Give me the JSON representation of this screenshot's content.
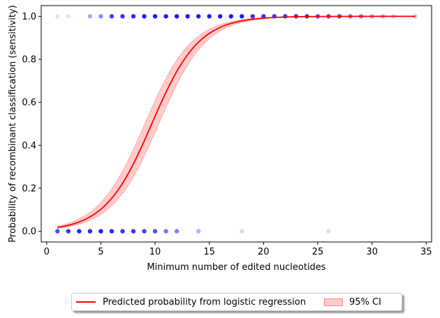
{
  "chart_data": {
    "type": "scatter",
    "xlabel": "Minimum number of edited nucleotides",
    "ylabel": "Probability of recombinant classification (sensitivity)",
    "xlim": [
      -0.5,
      35.5
    ],
    "ylim": [
      -0.05,
      1.05
    ],
    "x_ticks": [
      0,
      5,
      10,
      15,
      20,
      25,
      30,
      35
    ],
    "y_ticks": [
      0.0,
      0.2,
      0.4,
      0.6,
      0.8,
      1.0
    ],
    "grid": false,
    "legend_position": "bottom-outside",
    "colors": {
      "points": "#0000ff",
      "curve": "#ff0000",
      "ci_fill": "#ff0000"
    },
    "points_y1": [
      {
        "x": 1,
        "a": 0.12
      },
      {
        "x": 2,
        "a": 0.12
      },
      {
        "x": 4,
        "a": 0.35
      },
      {
        "x": 5,
        "a": 0.45
      },
      {
        "x": 6,
        "a": 0.75
      },
      {
        "x": 7,
        "a": 0.8
      },
      {
        "x": 8,
        "a": 0.85
      },
      {
        "x": 9,
        "a": 0.9
      },
      {
        "x": 10,
        "a": 0.9
      },
      {
        "x": 11,
        "a": 0.9
      },
      {
        "x": 12,
        "a": 0.9
      },
      {
        "x": 13,
        "a": 0.9
      },
      {
        "x": 14,
        "a": 0.9
      },
      {
        "x": 15,
        "a": 0.9
      },
      {
        "x": 16,
        "a": 0.9
      },
      {
        "x": 17,
        "a": 0.9
      },
      {
        "x": 18,
        "a": 0.9
      },
      {
        "x": 19,
        "a": 0.8
      },
      {
        "x": 20,
        "a": 0.8
      },
      {
        "x": 21,
        "a": 0.8
      },
      {
        "x": 22,
        "a": 0.8
      },
      {
        "x": 23,
        "a": 0.8
      },
      {
        "x": 24,
        "a": 0.8
      },
      {
        "x": 25,
        "a": 0.7
      },
      {
        "x": 26,
        "a": 0.7
      },
      {
        "x": 27,
        "a": 0.7
      },
      {
        "x": 28,
        "a": 0.55
      },
      {
        "x": 29,
        "a": 0.5
      },
      {
        "x": 30,
        "a": 0.35
      },
      {
        "x": 31,
        "a": 0.3
      },
      {
        "x": 32,
        "a": 0.2
      },
      {
        "x": 34,
        "a": 0.2
      }
    ],
    "points_y0": [
      {
        "x": 1,
        "a": 0.7
      },
      {
        "x": 2,
        "a": 0.8
      },
      {
        "x": 3,
        "a": 0.85
      },
      {
        "x": 4,
        "a": 0.85
      },
      {
        "x": 5,
        "a": 0.9
      },
      {
        "x": 6,
        "a": 0.85
      },
      {
        "x": 7,
        "a": 0.8
      },
      {
        "x": 8,
        "a": 0.8
      },
      {
        "x": 9,
        "a": 0.75
      },
      {
        "x": 10,
        "a": 0.7
      },
      {
        "x": 11,
        "a": 0.55
      },
      {
        "x": 12,
        "a": 0.5
      },
      {
        "x": 14,
        "a": 0.3
      },
      {
        "x": 18,
        "a": 0.15
      },
      {
        "x": 26,
        "a": 0.15
      }
    ],
    "logistic": {
      "intercept": -4.48,
      "slope": 0.462,
      "x_range": [
        1,
        34
      ]
    },
    "ci_halfwidth_logit": 0.3,
    "legend": {
      "line_label": "Predicted probability from logistic regression",
      "ci_label": "95% CI"
    }
  }
}
